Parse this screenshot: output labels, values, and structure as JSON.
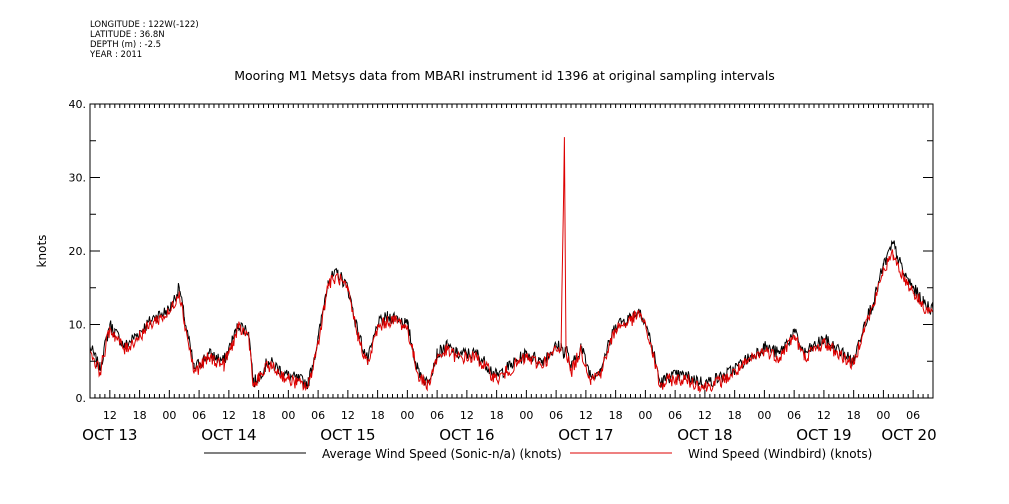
{
  "meta": {
    "longitude": "LONGITUDE : 122W(-122)",
    "latitude": "LATITUDE : 36.8N",
    "depth": "DEPTH (m) : -2.5",
    "year": "YEAR : 2011"
  },
  "chart_data": {
    "type": "line",
    "title": "Mooring M1 Metsys data from MBARI instrument id 1396 at original sampling intervals",
    "xlabel": "",
    "ylabel": "knots",
    "ylim": [
      0,
      40
    ],
    "yticks": [
      0,
      10,
      20,
      30,
      40
    ],
    "ytick_labels": [
      "0.",
      "10.",
      "20.",
      "30.",
      "40."
    ],
    "xlim": [
      "2011-10-13T08:00",
      "2011-10-20T10:00"
    ],
    "hour_tick_labels": [
      "12",
      "18",
      "00",
      "06",
      "12",
      "18",
      "00",
      "06",
      "12",
      "18",
      "00",
      "06",
      "12",
      "18",
      "00",
      "06",
      "12",
      "18",
      "00",
      "06",
      "12",
      "18",
      "00",
      "06",
      "12",
      "18",
      "00",
      "06"
    ],
    "day_labels": [
      "OCT 13",
      "OCT 14",
      "OCT 15",
      "OCT 16",
      "OCT 17",
      "OCT 18",
      "OCT 19",
      "OCT 20"
    ],
    "grid": false,
    "legend": "bottom",
    "x": [
      "2011-10-13T08:00",
      "2011-10-13T10:00",
      "2011-10-13T12:00",
      "2011-10-13T13:00",
      "2011-10-13T15:00",
      "2011-10-13T18:00",
      "2011-10-13T21:00",
      "2011-10-14T00:00",
      "2011-10-14T02:00",
      "2011-10-14T03:00",
      "2011-10-14T05:00",
      "2011-10-14T08:00",
      "2011-10-14T11:00",
      "2011-10-14T14:00",
      "2011-10-14T16:00",
      "2011-10-14T17:00",
      "2011-10-14T18:00",
      "2011-10-14T20:00",
      "2011-10-15T00:00",
      "2011-10-15T04:00",
      "2011-10-15T06:00",
      "2011-10-15T08:00",
      "2011-10-15T10:00",
      "2011-10-15T12:00",
      "2011-10-15T14:00",
      "2011-10-15T16:00",
      "2011-10-15T18:00",
      "2011-10-15T20:00",
      "2011-10-15T22:00",
      "2011-10-16T00:00",
      "2011-10-16T02:00",
      "2011-10-16T04:00",
      "2011-10-16T06:00",
      "2011-10-16T08:00",
      "2011-10-16T10:00",
      "2011-10-16T14:00",
      "2011-10-16T18:00",
      "2011-10-16T20:00",
      "2011-10-16T22:00",
      "2011-10-17T00:00",
      "2011-10-17T03:00",
      "2011-10-17T06:00",
      "2011-10-17T07:00",
      "2011-10-17T07:40",
      "2011-10-17T08:00",
      "2011-10-17T09:00",
      "2011-10-17T11:00",
      "2011-10-17T13:00",
      "2011-10-17T15:00",
      "2011-10-17T18:00",
      "2011-10-17T21:00",
      "2011-10-17T23:00",
      "2011-10-18T01:00",
      "2011-10-18T03:00",
      "2011-10-18T05:00",
      "2011-10-18T08:00",
      "2011-10-18T12:00",
      "2011-10-18T16:00",
      "2011-10-18T20:00",
      "2011-10-19T00:00",
      "2011-10-19T03:00",
      "2011-10-19T06:00",
      "2011-10-19T08:00",
      "2011-10-19T12:00",
      "2011-10-19T16:00",
      "2011-10-19T18:00",
      "2011-10-19T20:00",
      "2011-10-19T22:00",
      "2011-10-20T00:00",
      "2011-10-20T02:00",
      "2011-10-20T04:00",
      "2011-10-20T06:00",
      "2011-10-20T08:00",
      "2011-10-20T10:00"
    ],
    "series": [
      {
        "name": "Average Wind Speed (Sonic-n/a) (knots)",
        "color": "#000000",
        "values": [
          7,
          4,
          10,
          9,
          7,
          9,
          11,
          12,
          15,
          11,
          4,
          6,
          5,
          10,
          9,
          2,
          3,
          5,
          3,
          2,
          8,
          16,
          17,
          15,
          9,
          5,
          10,
          11,
          11,
          10,
          4,
          2,
          6,
          7,
          6,
          6,
          3,
          4,
          5,
          6,
          5,
          7,
          7,
          6,
          7,
          4,
          7,
          3,
          4,
          10,
          11,
          12,
          8,
          2,
          3,
          3,
          2,
          3,
          5,
          7,
          6,
          9,
          6,
          8,
          6,
          5,
          10,
          13,
          18,
          21,
          17,
          15,
          13,
          12
        ]
      },
      {
        "name": "Wind Speed (Windbird) (knots)",
        "color": "#dd0000",
        "values": [
          6.5,
          3.5,
          9.5,
          8.5,
          6.5,
          8.5,
          10.5,
          11.5,
          14.5,
          10.5,
          3.5,
          5.5,
          4.5,
          9.5,
          8.5,
          1.5,
          2.5,
          4.5,
          2.5,
          1.5,
          7.5,
          15.5,
          16.5,
          14.5,
          8.5,
          4.5,
          9.5,
          10.5,
          10.5,
          9.5,
          3.5,
          1.5,
          5.5,
          6.5,
          5.5,
          5.5,
          2.5,
          3.5,
          4.5,
          5.5,
          4.5,
          6.5,
          6.5,
          35.5,
          6.5,
          3.5,
          6.5,
          2.5,
          3.5,
          9.5,
          10.5,
          11.5,
          7.5,
          1.5,
          2.5,
          2.5,
          1.5,
          2.5,
          4.5,
          6.5,
          5.5,
          8.5,
          5.5,
          7.5,
          5.5,
          4.5,
          9.5,
          12.5,
          17.5,
          19.5,
          16.5,
          14.5,
          12.5,
          11.5
        ]
      }
    ]
  }
}
